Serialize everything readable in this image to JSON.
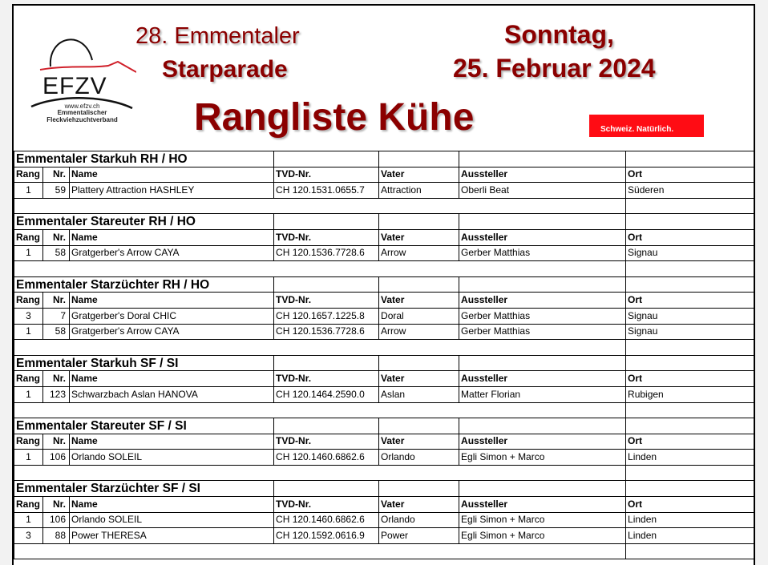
{
  "header": {
    "line1": "28. Emmentaler",
    "line2": "Starparade",
    "title": "Rangliste Kühe",
    "day": "Sonntag,",
    "date": "25. Februar 2024",
    "badge": "Schweiz. Natürlich.",
    "logo": {
      "text": "EFZV",
      "url": "www.efzv.ch",
      "line1": "Emmentalischer",
      "line2": "Fleckviehzuchtverband"
    }
  },
  "columns": [
    "Rang",
    "Nr.",
    "Name",
    "TVD-Nr.",
    "Vater",
    "Aussteller",
    "Ort"
  ],
  "sections": [
    {
      "title": "Emmentaler Starkuh RH / HO",
      "rows": [
        [
          "1",
          "59",
          "Plattery Attraction HASHLEY",
          "CH 120.1531.0655.7",
          "Attraction",
          "Oberli Beat",
          "Süderen"
        ]
      ]
    },
    {
      "title": "Emmentaler Stareuter RH / HO",
      "rows": [
        [
          "1",
          "58",
          "Gratgerber's Arrow CAYA",
          "CH 120.1536.7728.6",
          "Arrow",
          "Gerber Matthias",
          "Signau"
        ]
      ]
    },
    {
      "title": "Emmentaler Starzüchter RH / HO",
      "rows": [
        [
          "3",
          "7",
          "Gratgerber's Doral CHIC",
          "CH 120.1657.1225.8",
          "Doral",
          "Gerber Matthias",
          "Signau"
        ],
        [
          "1",
          "58",
          "Gratgerber's Arrow CAYA",
          "CH 120.1536.7728.6",
          "Arrow",
          "Gerber Matthias",
          "Signau"
        ]
      ]
    },
    {
      "title": "Emmentaler Starkuh SF / SI",
      "rows": [
        [
          "1",
          "123",
          "Schwarzbach Aslan HANOVA",
          "CH 120.1464.2590.0",
          "Aslan",
          "Matter Florian",
          "Rubigen"
        ]
      ]
    },
    {
      "title": "Emmentaler Stareuter SF / SI",
      "rows": [
        [
          "1",
          "106",
          "Orlando SOLEIL",
          "CH 120.1460.6862.6",
          "Orlando",
          "Egli Simon + Marco",
          "Linden"
        ]
      ]
    },
    {
      "title": "Emmentaler Starzüchter SF / SI",
      "rows": [
        [
          "1",
          "106",
          "Orlando SOLEIL",
          "CH 120.1460.6862.6",
          "Orlando",
          "Egli Simon + Marco",
          "Linden"
        ],
        [
          "3",
          "88",
          "Power THERESA",
          "CH 120.1592.0616.9",
          "Power",
          "Egli Simon + Marco",
          "Linden"
        ]
      ]
    }
  ]
}
